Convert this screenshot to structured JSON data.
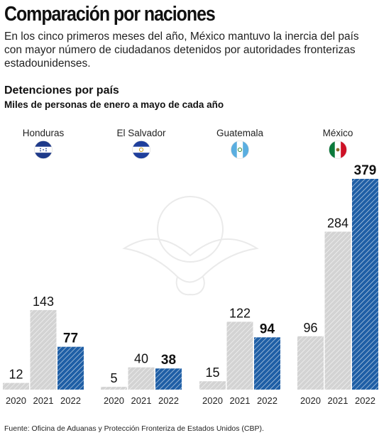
{
  "header": {
    "title": "Comparación por naciones",
    "subtitle": "En los cinco primeros meses del año, México mantuvo la inercia del país con mayor número de ciudadanos detenidos por autoridades fronterizas estadounidenses."
  },
  "chart_data": {
    "type": "bar",
    "title": "Detenciones por país",
    "subtitle": "Miles de personas de enero a mayo de cada año",
    "groups": [
      {
        "country": "Honduras",
        "flag_icon": "honduras-flag-icon",
        "years": [
          "2020",
          "2021",
          "2022"
        ],
        "values": [
          12,
          143,
          77
        ]
      },
      {
        "country": "El Salvador",
        "flag_icon": "el-salvador-flag-icon",
        "years": [
          "2020",
          "2021",
          "2022"
        ],
        "values": [
          5,
          40,
          38
        ]
      },
      {
        "country": "Guatemala",
        "flag_icon": "guatemala-flag-icon",
        "years": [
          "2020",
          "2021",
          "2022"
        ],
        "values": [
          15,
          122,
          94
        ]
      },
      {
        "country": "México",
        "flag_icon": "mexico-flag-icon",
        "years": [
          "2020",
          "2021",
          "2022"
        ],
        "values": [
          96,
          284,
          379
        ]
      }
    ],
    "ylim": [
      0,
      379
    ],
    "grid": false,
    "colors": {
      "past_years": "#d3d3d3",
      "current_year": "#1f5fa6",
      "hatch": "#ffffff"
    }
  },
  "footer": {
    "source": "Fuente: Oficina de Aduanas y Protección Fronteriza de Estados Unidos (CBP)."
  }
}
